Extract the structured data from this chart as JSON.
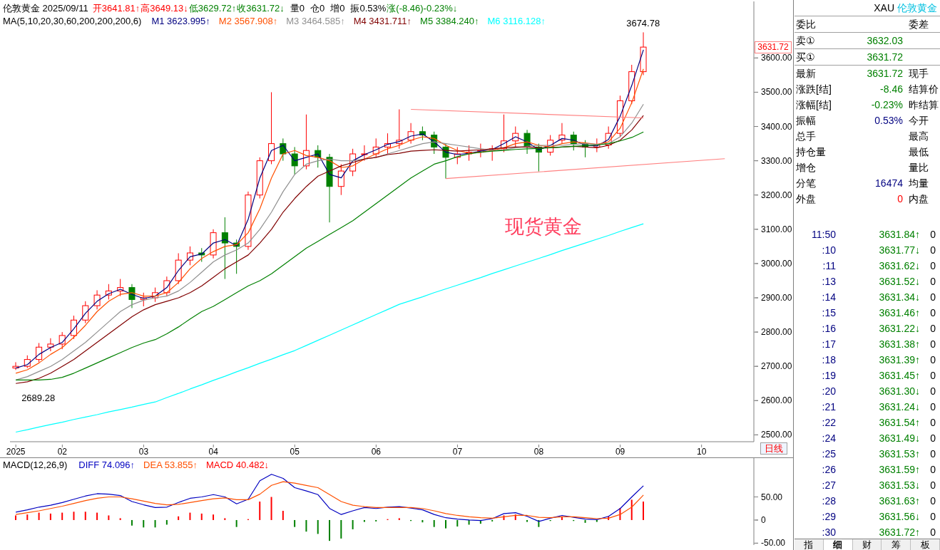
{
  "chart_data": [
    {
      "type": "candlestick",
      "title": "伦敦黄金 2025/09/11",
      "legend": "top left",
      "legend_title": "MA(5,10,20,30,60,200,200,200,6)",
      "annotations": [
        "开3641.81↑",
        "高3649.13↓",
        "低3629.72↑",
        "收3631.72↓",
        "量0",
        "仓0",
        "增0",
        "振0.53%",
        "涨(-8.46)-0.23%↓",
        {
          "text": "3674.78",
          "y": 3674.78
        },
        {
          "text": "2689.28",
          "y": 2689.28
        },
        "3631.72",
        "现货黄金",
        "日线"
      ],
      "categories": [
        "2025",
        null,
        null,
        null,
        "02",
        null,
        null,
        null,
        null,
        null,
        null,
        "03",
        null,
        null,
        null,
        null,
        null,
        "04",
        null,
        null,
        null,
        null,
        null,
        null,
        "05",
        null,
        null,
        null,
        null,
        null,
        null,
        "06",
        null,
        null,
        null,
        null,
        null,
        null,
        "07",
        null,
        null,
        null,
        null,
        null,
        null,
        "08",
        null,
        null,
        null,
        null,
        null,
        null,
        "09",
        null,
        null,
        null,
        null,
        null,
        null,
        "10",
        null,
        null,
        null,
        null
      ],
      "ylim": [
        2480,
        3765
      ],
      "yticks": [
        {
          "value": 2500,
          "label": "2500.00"
        },
        {
          "value": 2600,
          "label": "2600.00"
        },
        {
          "value": 2700,
          "label": "2700.00"
        },
        {
          "value": 2800,
          "label": "2800.00"
        },
        {
          "value": 2900,
          "label": "2900.00"
        },
        {
          "value": 3000,
          "label": "3000.00"
        },
        {
          "value": 3100,
          "label": "3100.00"
        },
        {
          "value": 3200,
          "label": "3200.00"
        },
        {
          "value": 3300,
          "label": "3300.00"
        },
        {
          "value": 3400,
          "label": "3400.00"
        },
        {
          "value": 3500,
          "label": "3500.00"
        },
        {
          "value": 3600,
          "label": "3600.00"
        }
      ],
      "ohlc": [
        [
          2695,
          2712,
          2689.28,
          2700
        ],
        [
          2700,
          2732,
          2695,
          2720
        ],
        [
          2720,
          2768,
          2712,
          2756
        ],
        [
          2756,
          2782,
          2744,
          2765
        ],
        [
          2765,
          2800,
          2750,
          2790
        ],
        [
          2790,
          2848,
          2780,
          2835
        ],
        [
          2835,
          2890,
          2826,
          2877
        ],
        [
          2877,
          2922,
          2866,
          2908
        ],
        [
          2908,
          2940,
          2895,
          2920
        ],
        [
          2920,
          2955,
          2905,
          2930
        ],
        [
          2930,
          2940,
          2870,
          2895
        ],
        [
          2895,
          2915,
          2875,
          2900
        ],
        [
          2900,
          2930,
          2888,
          2915
        ],
        [
          2915,
          2962,
          2905,
          2950
        ],
        [
          2950,
          3030,
          2940,
          3010
        ],
        [
          3010,
          3050,
          2995,
          3031
        ],
        [
          3031,
          3045,
          3005,
          3025
        ],
        [
          3025,
          3100,
          3015,
          3090
        ],
        [
          3090,
          3135,
          2955,
          3060
        ],
        [
          3060,
          3070,
          2970,
          3050
        ],
        [
          3050,
          3210,
          3040,
          3200
        ],
        [
          3200,
          3310,
          3190,
          3300
        ],
        [
          3300,
          3500,
          3290,
          3350
        ],
        [
          3350,
          3365,
          3300,
          3320
        ],
        [
          3320,
          3340,
          3260,
          3285
        ],
        [
          3285,
          3435,
          3275,
          3330
        ],
        [
          3330,
          3345,
          3280,
          3310
        ],
        [
          3310,
          3320,
          3120,
          3225
        ],
        [
          3225,
          3290,
          3200,
          3270
        ],
        [
          3270,
          3335,
          3255,
          3320
        ],
        [
          3320,
          3345,
          3300,
          3320
        ],
        [
          3320,
          3365,
          3310,
          3340
        ],
        [
          3340,
          3380,
          3320,
          3350
        ],
        [
          3350,
          3450,
          3335,
          3360
        ],
        [
          3360,
          3410,
          3350,
          3385
        ],
        [
          3385,
          3400,
          3360,
          3375
        ],
        [
          3375,
          3385,
          3320,
          3340
        ],
        [
          3340,
          3350,
          3248,
          3310
        ],
        [
          3310,
          3340,
          3290,
          3320
        ],
        [
          3320,
          3345,
          3300,
          3325
        ],
        [
          3325,
          3350,
          3310,
          3330
        ],
        [
          3330,
          3345,
          3300,
          3335
        ],
        [
          3335,
          3435,
          3325,
          3358
        ],
        [
          3358,
          3400,
          3340,
          3380
        ],
        [
          3380,
          3390,
          3320,
          3340
        ],
        [
          3340,
          3350,
          3269,
          3325
        ],
        [
          3325,
          3375,
          3315,
          3360
        ],
        [
          3360,
          3410,
          3350,
          3375
        ],
        [
          3375,
          3385,
          3330,
          3350
        ],
        [
          3350,
          3360,
          3310,
          3340
        ],
        [
          3340,
          3365,
          3325,
          3346
        ],
        [
          3346,
          3400,
          3335,
          3380
        ],
        [
          3380,
          3490,
          3370,
          3475
        ],
        [
          3475,
          3580,
          3465,
          3560
        ],
        [
          3560,
          3674.78,
          3550,
          3631.72
        ],
        null,
        null,
        null,
        null,
        null,
        null,
        null,
        null,
        null
      ],
      "series": [
        {
          "name": "M1 3623.995↑",
          "type": "line",
          "color": "#000080",
          "values": [
            2695,
            2705,
            2735,
            2755,
            2770,
            2810,
            2855,
            2890,
            2912,
            2925,
            2910,
            2898,
            2905,
            2930,
            2980,
            3020,
            3028,
            3060,
            3070,
            3052,
            3130,
            3250,
            3330,
            3345,
            3300,
            3310,
            3320,
            3260,
            3250,
            3300,
            3318,
            3332,
            3348,
            3356,
            3372,
            3378,
            3355,
            3325,
            3318,
            3322,
            3328,
            3333,
            3350,
            3370,
            3355,
            3332,
            3345,
            3365,
            3360,
            3345,
            3343,
            3362,
            3430,
            3520,
            3624,
            null,
            null,
            null,
            null,
            null,
            null,
            null,
            null,
            null
          ]
        },
        {
          "name": "M2 3567.908↑",
          "type": "line",
          "color": "#ff5000",
          "values": [
            2680,
            2690,
            2710,
            2735,
            2755,
            2785,
            2820,
            2860,
            2890,
            2910,
            2915,
            2905,
            2905,
            2915,
            2945,
            2985,
            3015,
            3035,
            3050,
            3055,
            3090,
            3160,
            3250,
            3320,
            3330,
            3315,
            3310,
            3300,
            3280,
            3285,
            3305,
            3320,
            3335,
            3345,
            3360,
            3370,
            3365,
            3345,
            3330,
            3322,
            3325,
            3330,
            3338,
            3350,
            3355,
            3345,
            3340,
            3350,
            3355,
            3352,
            3348,
            3355,
            3395,
            3470,
            3568,
            null,
            null,
            null,
            null,
            null,
            null,
            null,
            null,
            null
          ]
        },
        {
          "name": "M3 3464.585↑",
          "type": "line",
          "color": "#909090",
          "values": [
            2660,
            2670,
            2685,
            2700,
            2720,
            2745,
            2770,
            2800,
            2830,
            2860,
            2880,
            2893,
            2900,
            2905,
            2920,
            2945,
            2975,
            3005,
            3025,
            3040,
            3060,
            3100,
            3150,
            3210,
            3260,
            3290,
            3300,
            3305,
            3300,
            3300,
            3305,
            3310,
            3320,
            3330,
            3340,
            3350,
            3355,
            3350,
            3345,
            3340,
            3335,
            3330,
            3332,
            3338,
            3342,
            3345,
            3345,
            3345,
            3348,
            3350,
            3348,
            3350,
            3370,
            3410,
            3465,
            null,
            null,
            null,
            null,
            null,
            null,
            null,
            null,
            null
          ]
        },
        {
          "name": "M4 3431.711↑",
          "type": "line",
          "color": "#800000",
          "values": [
            2650,
            2655,
            2665,
            2680,
            2700,
            2720,
            2745,
            2770,
            2795,
            2820,
            2845,
            2865,
            2880,
            2890,
            2900,
            2915,
            2935,
            2960,
            2985,
            3005,
            3025,
            3060,
            3100,
            3150,
            3190,
            3225,
            3255,
            3270,
            3285,
            3295,
            3305,
            3310,
            3318,
            3322,
            3328,
            3330,
            3332,
            3330,
            3328,
            3330,
            3332,
            3335,
            3338,
            3340,
            3340,
            3338,
            3338,
            3340,
            3342,
            3340,
            3338,
            3345,
            3360,
            3390,
            3432,
            null,
            null,
            null,
            null,
            null,
            null,
            null,
            null,
            null
          ]
        },
        {
          "name": "M5 3384.240↑",
          "type": "line",
          "color": "#008000",
          "values": [
            2660,
            2660,
            2660,
            2662,
            2668,
            2680,
            2695,
            2710,
            2725,
            2740,
            2755,
            2768,
            2778,
            2795,
            2815,
            2838,
            2860,
            2875,
            2895,
            2915,
            2935,
            2950,
            2970,
            2995,
            3020,
            3045,
            3065,
            3085,
            3105,
            3125,
            3150,
            3175,
            3200,
            3225,
            3250,
            3270,
            3290,
            3300,
            3312,
            3320,
            3325,
            3328,
            3330,
            3333,
            3335,
            3336,
            3338,
            3340,
            3342,
            3344,
            3346,
            3350,
            3358,
            3368,
            3384,
            null,
            null,
            null,
            null,
            null,
            null,
            null,
            null,
            null
          ]
        },
        {
          "name": "M6 3116.128↑",
          "type": "line",
          "color": "#00ffff",
          "values": [
            2508,
            2515,
            2523,
            2530,
            2537,
            2545,
            2552,
            2559,
            2567,
            2574,
            2581,
            2589,
            2596,
            2609,
            2621,
            2634,
            2646,
            2659,
            2671,
            2684,
            2696,
            2709,
            2721,
            2734,
            2746,
            2761,
            2776,
            2791,
            2806,
            2821,
            2836,
            2851,
            2866,
            2881,
            2892,
            2903,
            2915,
            2926,
            2937,
            2948,
            2959,
            2971,
            2982,
            2993,
            3004,
            3015,
            3026,
            3038,
            3049,
            3060,
            3071,
            3082,
            3094,
            3105,
            3116,
            null,
            null,
            null,
            null,
            null,
            null,
            null,
            null,
            null
          ]
        },
        {
          "type": "line",
          "color": "#ff8080",
          "values": [
            null,
            null,
            null,
            null,
            null,
            null,
            null,
            null,
            null,
            null,
            null,
            null,
            null,
            null,
            null,
            null,
            null,
            null,
            null,
            null,
            null,
            null,
            null,
            null,
            null,
            null,
            null,
            null,
            null,
            null,
            null,
            null,
            null,
            null,
            3450,
            null,
            null,
            null,
            null,
            null,
            null,
            null,
            null,
            null,
            null,
            null,
            null,
            null,
            null,
            null,
            null,
            null,
            null,
            null,
            3425,
            null,
            null,
            null,
            null,
            null,
            null,
            null,
            null,
            null
          ]
        },
        {
          "type": "line",
          "color": "#ff8080",
          "values": [
            null,
            null,
            null,
            null,
            null,
            null,
            null,
            null,
            null,
            null,
            null,
            null,
            null,
            null,
            null,
            null,
            null,
            null,
            null,
            null,
            null,
            null,
            null,
            null,
            null,
            null,
            null,
            null,
            null,
            null,
            null,
            null,
            null,
            null,
            null,
            null,
            null,
            3248,
            null,
            null,
            null,
            null,
            null,
            null,
            null,
            null,
            null,
            null,
            null,
            null,
            null,
            null,
            null,
            null,
            null,
            null,
            null,
            null,
            null,
            null,
            null,
            3306,
            null,
            null
          ]
        }
      ]
    },
    {
      "type": "bar",
      "title": "MACD(12,26,9)",
      "legend": "top left",
      "tick_labels": "y",
      "categories": [
        "2025",
        null,
        null,
        null,
        "02",
        null,
        null,
        null,
        null,
        null,
        null,
        "03",
        null,
        null,
        null,
        null,
        null,
        "04",
        null,
        null,
        null,
        null,
        null,
        null,
        "05",
        null,
        null,
        null,
        null,
        null,
        null,
        "06",
        null,
        null,
        null,
        null,
        null,
        null,
        "07",
        null,
        null,
        null,
        null,
        null,
        null,
        "08",
        null,
        null,
        null,
        null,
        null,
        null,
        "09",
        null,
        null,
        null,
        null,
        null,
        null,
        "10",
        null,
        null,
        null,
        null
      ],
      "ylim": [
        -54,
        134
      ],
      "yticks": [
        {
          "value": -50,
          "label": "-50.00"
        },
        0,
        {
          "value": 50,
          "label": "50.00"
        }
      ],
      "series": [
        {
          "name": "DIFF 74.096↑",
          "type": "line",
          "color": "#0000c0",
          "values": [
            17,
            22,
            28,
            32,
            38,
            45,
            52,
            57,
            56,
            53,
            40,
            33,
            27,
            28,
            38,
            47,
            50,
            55,
            50,
            35,
            45,
            85,
            99,
            90,
            70,
            63,
            55,
            25,
            12,
            20,
            27,
            25,
            28,
            29,
            26,
            22,
            12,
            5,
            2,
            0,
            -1,
            3,
            14,
            16,
            8,
            -3,
            4,
            10,
            6,
            2,
            1,
            8,
            25,
            50,
            74,
            null,
            null,
            null,
            null,
            null,
            null,
            null,
            null,
            null
          ]
        },
        {
          "name": "DEA 53.855↑",
          "type": "line",
          "color": "#ff5000",
          "values": [
            12,
            16,
            20,
            25,
            30,
            36,
            42,
            47,
            50,
            50,
            46,
            41,
            36,
            33,
            34,
            38,
            42,
            46,
            48,
            44,
            44,
            56,
            75,
            83,
            80,
            75,
            70,
            55,
            40,
            32,
            29,
            27,
            27,
            27,
            27,
            25,
            20,
            14,
            10,
            7,
            5,
            4,
            7,
            10,
            10,
            6,
            5,
            7,
            7,
            5,
            3,
            4,
            12,
            28,
            54,
            null,
            null,
            null,
            null,
            null,
            null,
            null,
            null,
            null
          ]
        },
        {
          "name": "MACD 40.482↓",
          "type": "bar",
          "values": [
            10,
            12,
            16,
            14,
            16,
            18,
            18,
            16,
            10,
            4,
            -12,
            -16,
            -16,
            -10,
            8,
            16,
            14,
            12,
            4,
            -15,
            2,
            40,
            50,
            20,
            -15,
            -25,
            -30,
            -45,
            -40,
            -20,
            -4,
            -3,
            2,
            4,
            -2,
            -5,
            -15,
            -18,
            -14,
            -10,
            -8,
            -3,
            10,
            12,
            -4,
            -15,
            -2,
            6,
            -2,
            -6,
            -4,
            8,
            26,
            44,
            40,
            null,
            null,
            null,
            null,
            null,
            null,
            null,
            null,
            null
          ],
          "colors": [
            "#ff0000",
            "#ff0000",
            "#ff0000",
            "#ff0000",
            "#ff0000",
            "#ff0000",
            "#ff0000",
            "#ff0000",
            "#ff0000",
            "#ff0000",
            "#008000",
            "#008000",
            "#008000",
            "#008000",
            "#ff0000",
            "#ff0000",
            "#ff0000",
            "#ff0000",
            "#ff0000",
            "#008000",
            "#ff0000",
            "#ff0000",
            "#ff0000",
            "#ff0000",
            "#008000",
            "#008000",
            "#008000",
            "#008000",
            "#008000",
            "#008000",
            "#008000",
            "#008000",
            "#ff0000",
            "#ff0000",
            "#008000",
            "#008000",
            "#008000",
            "#008000",
            "#008000",
            "#008000",
            "#008000",
            "#008000",
            "#ff0000",
            "#ff0000",
            "#008000",
            "#008000",
            "#008000",
            "#ff0000",
            "#008000",
            "#008000",
            "#008000",
            "#ff0000",
            "#ff0000",
            "#ff0000",
            "#ff0000",
            null,
            null,
            null,
            null,
            null,
            null,
            null,
            null,
            null
          ]
        }
      ]
    },
    {
      "type": "other",
      "title": "XAU",
      "subtitle": "伦敦黄金",
      "cell_labels": [
        [
          "委比",
          null,
          "委差"
        ],
        [
          "卖①",
          "3632.03",
          null
        ],
        [
          "买①",
          "3631.72",
          null
        ],
        [
          "最新",
          "3631.72",
          "现手"
        ],
        [
          "涨跌[结]",
          "-8.46",
          "结算价"
        ],
        [
          "涨幅[结]",
          "-0.23%",
          "昨结算"
        ],
        [
          "振幅",
          "0.53%",
          "今开"
        ],
        [
          "总手",
          null,
          "最高"
        ],
        [
          "持仓量",
          null,
          "最低"
        ],
        [
          "增仓",
          null,
          "量比"
        ],
        [
          "分笔",
          "16474",
          "均量"
        ],
        [
          "外盘",
          "0",
          "内盘"
        ]
      ]
    },
    {
      "type": "other",
      "annotations": [
        "指",
        "细",
        "财",
        "筹",
        "板"
      ],
      "cell_labels": [
        [
          "11:50",
          "3631.84↑",
          "0"
        ],
        [
          ":10",
          "3631.77↓",
          "0"
        ],
        [
          ":11",
          "3631.62↓",
          "0"
        ],
        [
          ":13",
          "3631.52↓",
          "0"
        ],
        [
          ":14",
          "3631.34↓",
          "0"
        ],
        [
          ":15",
          "3631.46↑",
          "0"
        ],
        [
          ":16",
          "3631.22↓",
          "0"
        ],
        [
          ":17",
          "3631.38↑",
          "0"
        ],
        [
          ":18",
          "3631.39↑",
          "0"
        ],
        [
          ":19",
          "3631.45↑",
          "0"
        ],
        [
          ":20",
          "3631.30↓",
          "0"
        ],
        [
          ":21",
          "3631.24↓",
          "0"
        ],
        [
          ":22",
          "3631.54↑",
          "0"
        ],
        [
          ":24",
          "3631.49↓",
          "0"
        ],
        [
          ":25",
          "3631.53↑",
          "0"
        ],
        [
          ":26",
          "3631.59↑",
          "0"
        ],
        [
          ":27",
          "3631.53↓",
          "0"
        ],
        [
          ":28",
          "3631.63↑",
          "0"
        ],
        [
          ":29",
          "3631.56↓",
          "0"
        ],
        [
          ":30",
          "3631.72↑",
          "0"
        ]
      ]
    }
  ]
}
